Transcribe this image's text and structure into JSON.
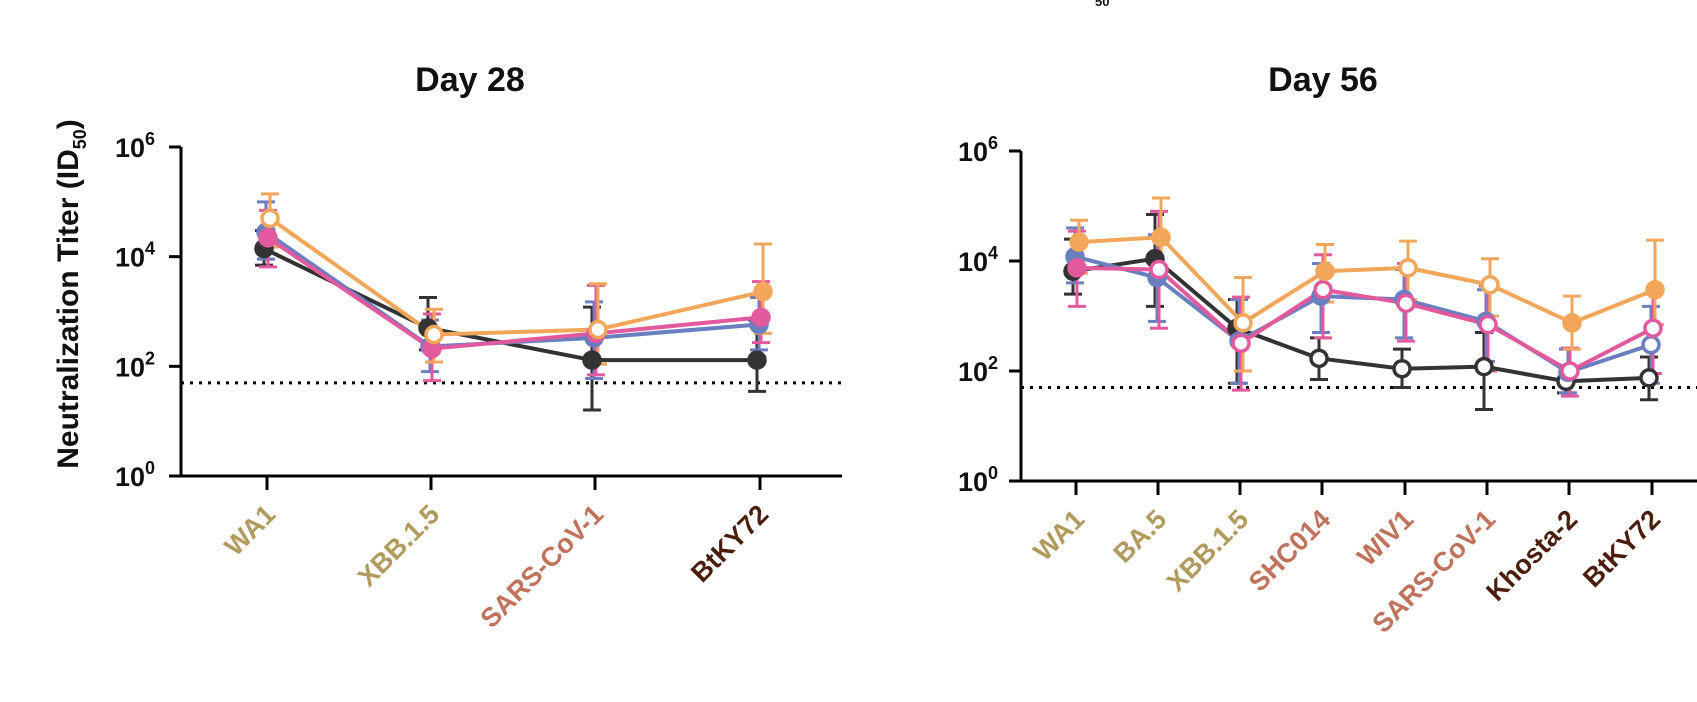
{
  "top_fragment": "50",
  "chart_data": [
    {
      "type": "line",
      "title": "Day 28",
      "ylabel": "Neutralization Titer (ID50)",
      "ylabel_main": "Neutralization Titer (ID",
      "ylabel_sub": "50",
      "ylabel_close": ")",
      "yscale": "log",
      "ylim_log10": [
        0,
        6
      ],
      "yticks": [
        {
          "base": "10",
          "exp": "0"
        },
        {
          "base": "10",
          "exp": "2"
        },
        {
          "base": "10",
          "exp": "4"
        },
        {
          "base": "10",
          "exp": "6"
        }
      ],
      "threshold": 50,
      "categories": [
        "WA1",
        "XBB.1.5",
        "SARS-CoV-1",
        "BtKY72"
      ],
      "category_colors": [
        "#b09a5c",
        "#b09a5c",
        "#c0725a",
        "#4a1d0c"
      ],
      "series": [
        {
          "name": "black",
          "color": "#333333",
          "fill": "filled",
          "values": [
            14000,
            500,
            130,
            130
          ],
          "err_low": [
            7000,
            200,
            16,
            35
          ],
          "err_high": [
            30000,
            1800,
            1200,
            700
          ]
        },
        {
          "name": "blue",
          "color": "#6a7fbf",
          "fill": "filled",
          "values": [
            28000,
            230,
            330,
            580
          ],
          "err_low": [
            9000,
            80,
            60,
            200
          ],
          "err_high": [
            100000,
            700,
            1500,
            1800
          ]
        },
        {
          "name": "pink",
          "color": "#e3599d",
          "fill": "filled",
          "values": [
            22000,
            210,
            400,
            780
          ],
          "err_low": [
            6500,
            55,
            70,
            270
          ],
          "err_high": [
            70000,
            900,
            3000,
            3500
          ]
        },
        {
          "name": "orange",
          "color": "#f2a65a",
          "fill": "open-then-filled",
          "values": [
            50000,
            380,
            470,
            2300
          ],
          "err_low": [
            15000,
            120,
            110,
            400
          ],
          "err_high": [
            140000,
            1100,
            3200,
            17000
          ]
        }
      ]
    },
    {
      "type": "line",
      "title": "Day 56",
      "yscale": "log",
      "ylim_log10": [
        0,
        6
      ],
      "yticks": [
        {
          "base": "10",
          "exp": "0"
        },
        {
          "base": "10",
          "exp": "2"
        },
        {
          "base": "10",
          "exp": "4"
        },
        {
          "base": "10",
          "exp": "6"
        }
      ],
      "threshold": 50,
      "categories": [
        "WA1",
        "BA.5",
        "XBB.1.5",
        "SHC014",
        "WIV1",
        "SARS-CoV-1",
        "Khosta-2",
        "BtKY72"
      ],
      "category_colors": [
        "#b09a5c",
        "#b09a5c",
        "#b09a5c",
        "#c0725a",
        "#c0725a",
        "#c0725a",
        "#4a1d0c",
        "#4a1d0c"
      ],
      "series": [
        {
          "name": "black",
          "color": "#333333",
          "values": [
            6500,
            11000,
            600,
            170,
            110,
            120,
            65,
            75
          ],
          "err_low": [
            2500,
            1500,
            60,
            70,
            50,
            20,
            40,
            30
          ],
          "err_high": [
            25000,
            70000,
            2000,
            400,
            250,
            500,
            120,
            180
          ]
        },
        {
          "name": "blue",
          "color": "#6a7fbf",
          "values": [
            12000,
            5000,
            350,
            2300,
            2000,
            800,
            95,
            300
          ],
          "err_low": [
            4000,
            800,
            60,
            500,
            400,
            150,
            40,
            60
          ],
          "err_high": [
            40000,
            30000,
            2000,
            9000,
            7000,
            3000,
            250,
            1500
          ]
        },
        {
          "name": "pink",
          "color": "#e3599d",
          "values": [
            7500,
            7000,
            320,
            3000,
            1700,
            700,
            100,
            600
          ],
          "err_low": [
            1500,
            600,
            45,
            400,
            350,
            100,
            35,
            90
          ],
          "err_high": [
            35000,
            80000,
            2200,
            13000,
            9000,
            3500,
            260,
            2500
          ]
        },
        {
          "name": "orange",
          "color": "#f2a65a",
          "values": [
            22000,
            27000,
            750,
            6500,
            7500,
            3700,
            750,
            3000
          ],
          "err_low": [
            6000,
            5000,
            100,
            1800,
            2000,
            1000,
            250,
            700
          ],
          "err_high": [
            55000,
            140000,
            5000,
            20000,
            23000,
            11000,
            2300,
            24000
          ]
        }
      ],
      "markers": {
        "black": [
          "filled",
          "filled",
          "filled",
          "open",
          "open",
          "open",
          "open",
          "open"
        ],
        "blue": [
          "filled",
          "filled",
          "filled",
          "filled",
          "filled",
          "filled",
          "open",
          "open"
        ],
        "pink": [
          "filled",
          "open",
          "open",
          "open",
          "open",
          "open",
          "open",
          "open"
        ],
        "orange": [
          "filled",
          "filled",
          "open",
          "filled",
          "open",
          "open",
          "filled",
          "filled"
        ]
      }
    }
  ]
}
